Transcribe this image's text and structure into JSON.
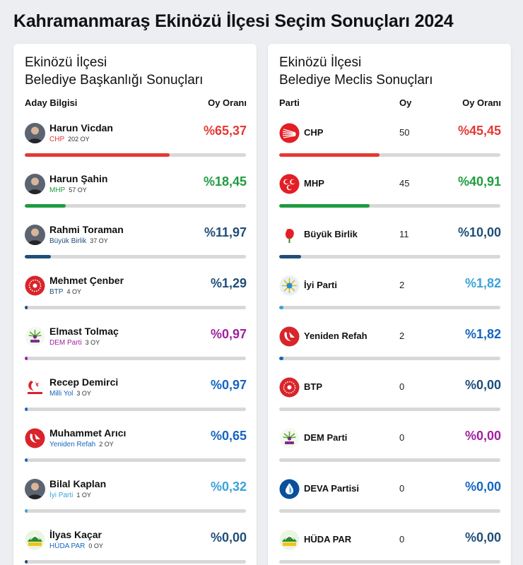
{
  "page": {
    "title": "Kahramanmaraş Ekinözü İlçesi Seçim Sonuçları 2024"
  },
  "mayor": {
    "title_line1": "Ekinözü İlçesi",
    "title_line2": "Belediye Başkanlığı Sonuçları",
    "col_candidate": "Aday Bilgisi",
    "col_rate": "Oy Oranı",
    "candidates": [
      {
        "name": "Harun Vicdan",
        "party": "CHP",
        "votes": "202 OY",
        "percent": "%65,37",
        "share": 65.37,
        "party_color": "#e53935",
        "pct_color": "#e53935",
        "bar_color": "#e53935",
        "icon": "candidate-photo"
      },
      {
        "name": "Harun Şahin",
        "party": "MHP",
        "votes": "57 OY",
        "percent": "%18,45",
        "share": 18.45,
        "party_color": "#1e9c3f",
        "pct_color": "#1e9c3f",
        "bar_color": "#1e9c3f",
        "icon": "candidate-photo"
      },
      {
        "name": "Rahmi Toraman",
        "party": "Büyük Birlik",
        "votes": "37 OY",
        "percent": "%11,97",
        "share": 11.97,
        "party_color": "#1f4e79",
        "pct_color": "#1f4e79",
        "bar_color": "#1f4e79",
        "icon": "candidate-photo"
      },
      {
        "name": "Mehmet Çenber",
        "party": "BTP",
        "votes": "4 OY",
        "percent": "%1,29",
        "share": 1.29,
        "party_color": "#1f4e79",
        "pct_color": "#1f4e79",
        "bar_color": "#1f4e79",
        "icon": "btp-logo"
      },
      {
        "name": "Elmast Tolmaç",
        "party": "DEM Parti",
        "votes": "3 OY",
        "percent": "%0,97",
        "share": 0.97,
        "party_color": "#a020a0",
        "pct_color": "#a020a0",
        "bar_color": "#a020a0",
        "icon": "dem-logo"
      },
      {
        "name": "Recep Demirci",
        "party": "Milli Yol",
        "votes": "3 OY",
        "percent": "%0,97",
        "share": 0.97,
        "party_color": "#1565c0",
        "pct_color": "#1565c0",
        "bar_color": "#1565c0",
        "icon": "milli-yol-logo"
      },
      {
        "name": "Muhammet Arıcı",
        "party": "Yeniden Refah",
        "votes": "2 OY",
        "percent": "%0,65",
        "share": 0.65,
        "party_color": "#1565c0",
        "pct_color": "#1565c0",
        "bar_color": "#1565c0",
        "icon": "yeniden-refah-logo"
      },
      {
        "name": "Bilal Kaplan",
        "party": "İyi Parti",
        "votes": "1 OY",
        "percent": "%0,32",
        "share": 0.32,
        "party_color": "#3aa3d8",
        "pct_color": "#3aa3d8",
        "bar_color": "#3aa3d8",
        "icon": "candidate-photo"
      },
      {
        "name": "İlyas Kaçar",
        "party": "HÜDA PAR",
        "votes": "0 OY",
        "percent": "%0,00",
        "share": 0,
        "party_color": "#1565c0",
        "pct_color": "#1f4e79",
        "bar_color": "#1f4e79",
        "icon": "huda-par-logo"
      }
    ]
  },
  "council": {
    "title_line1": "Ekinözü İlçesi",
    "title_line2": "Belediye Meclis Sonuçları",
    "col_party": "Parti",
    "col_votes": "Oy",
    "col_rate": "Oy Oranı",
    "parties": [
      {
        "name": "CHP",
        "votes": "50",
        "percent": "%45,45",
        "share": 45.45,
        "pct_color": "#e53935",
        "bar_color": "#e53935",
        "icon": "chp-logo"
      },
      {
        "name": "MHP",
        "votes": "45",
        "percent": "%40,91",
        "share": 40.91,
        "pct_color": "#1e9c3f",
        "bar_color": "#1e9c3f",
        "icon": "mhp-logo"
      },
      {
        "name": "Büyük Birlik",
        "votes": "11",
        "percent": "%10,00",
        "share": 10.0,
        "pct_color": "#1f4e79",
        "bar_color": "#1f4e79",
        "icon": "bbp-logo"
      },
      {
        "name": "İyi Parti",
        "votes": "2",
        "percent": "%1,82",
        "share": 1.82,
        "pct_color": "#3aa3d8",
        "bar_color": "#3aa3d8",
        "icon": "iyi-parti-logo"
      },
      {
        "name": "Yeniden Refah",
        "votes": "2",
        "percent": "%1,82",
        "share": 1.82,
        "pct_color": "#1565c0",
        "bar_color": "#1565c0",
        "icon": "yeniden-refah-logo"
      },
      {
        "name": "BTP",
        "votes": "0",
        "percent": "%0,00",
        "share": 0,
        "pct_color": "#1f4e79",
        "bar_color": "#1f4e79",
        "icon": "btp-logo"
      },
      {
        "name": "DEM Parti",
        "votes": "0",
        "percent": "%0,00",
        "share": 0,
        "pct_color": "#a020a0",
        "bar_color": "#a020a0",
        "icon": "dem-logo"
      },
      {
        "name": "DEVA Partisi",
        "votes": "0",
        "percent": "%0,00",
        "share": 0,
        "pct_color": "#1565c0",
        "bar_color": "#1565c0",
        "icon": "deva-logo"
      },
      {
        "name": "HÜDA PAR",
        "votes": "0",
        "percent": "%0,00",
        "share": 0,
        "pct_color": "#1f4e79",
        "bar_color": "#1f4e79",
        "icon": "huda-par-logo"
      }
    ]
  }
}
